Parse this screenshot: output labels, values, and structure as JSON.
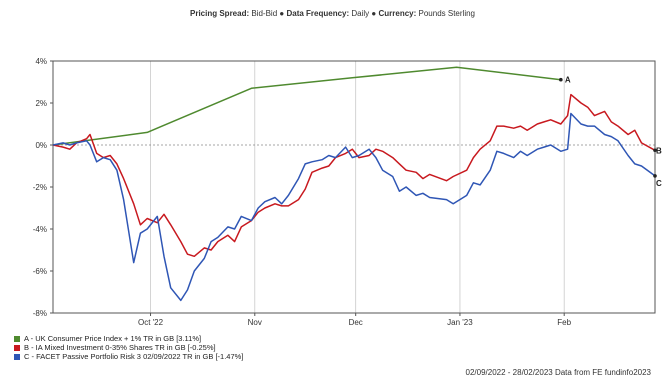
{
  "header": {
    "spread_key": "Pricing Spread:",
    "spread_value": "Bid-Bid",
    "freq_key": "Data Frequency:",
    "freq_value": "Daily",
    "currency_key": "Currency:",
    "currency_value": "Pounds Sterling",
    "separator": "●"
  },
  "footer": {
    "range_text": "02/09/2022 - 28/02/2023 Data from FE fundinfo2023"
  },
  "chart_data": {
    "type": "line",
    "title": "",
    "xlabel": "",
    "ylabel": "",
    "x_range": [
      "2022-09-02",
      "2023-02-28"
    ],
    "ylim": [
      -8,
      4
    ],
    "y_ticks": [
      4,
      2,
      0,
      -2,
      -4,
      -6,
      -8
    ],
    "y_tick_labels": [
      "4%",
      "2%",
      "0%",
      "-2%",
      "-4%",
      "-6%",
      "-8%"
    ],
    "x_ticks": [
      {
        "date": "2022-10-01",
        "label": "Oct '22"
      },
      {
        "date": "2022-11-01",
        "label": "Nov"
      },
      {
        "date": "2022-12-01",
        "label": "Dec"
      },
      {
        "date": "2023-01-01",
        "label": "Jan '23"
      },
      {
        "date": "2023-02-01",
        "label": "Feb"
      }
    ],
    "grid": "vertical at x ticks, zero line",
    "legend_position": "bottom-left",
    "series": [
      {
        "letter": "A",
        "name": "A - UK Consumer Price Index + 1% TR in GB [3.11%]",
        "color": "#4f8a2f",
        "points": [
          [
            "2022-09-02",
            0.0
          ],
          [
            "2022-09-30",
            0.6
          ],
          [
            "2022-10-31",
            2.7
          ],
          [
            "2022-11-30",
            3.2
          ],
          [
            "2022-12-31",
            3.7
          ],
          [
            "2023-01-31",
            3.11
          ]
        ]
      },
      {
        "letter": "B",
        "name": "B - IA Mixed Investment 0-35% Shares TR in GB [-0.25%]",
        "color": "#c8191f",
        "points": [
          [
            "2022-09-02",
            0.0
          ],
          [
            "2022-09-05",
            -0.1
          ],
          [
            "2022-09-07",
            -0.2
          ],
          [
            "2022-09-09",
            0.1
          ],
          [
            "2022-09-12",
            0.3
          ],
          [
            "2022-09-13",
            0.5
          ],
          [
            "2022-09-15",
            -0.4
          ],
          [
            "2022-09-17",
            -0.6
          ],
          [
            "2022-09-19",
            -0.5
          ],
          [
            "2022-09-21",
            -0.9
          ],
          [
            "2022-09-23",
            -1.6
          ],
          [
            "2022-09-26",
            -2.8
          ],
          [
            "2022-09-28",
            -3.8
          ],
          [
            "2022-09-30",
            -3.5
          ],
          [
            "2022-10-03",
            -3.7
          ],
          [
            "2022-10-05",
            -3.3
          ],
          [
            "2022-10-07",
            -3.8
          ],
          [
            "2022-10-10",
            -4.6
          ],
          [
            "2022-10-12",
            -5.2
          ],
          [
            "2022-10-14",
            -5.3
          ],
          [
            "2022-10-17",
            -4.9
          ],
          [
            "2022-10-19",
            -5.0
          ],
          [
            "2022-10-21",
            -4.6
          ],
          [
            "2022-10-24",
            -4.3
          ],
          [
            "2022-10-26",
            -4.6
          ],
          [
            "2022-10-28",
            -3.9
          ],
          [
            "2022-10-31",
            -3.6
          ],
          [
            "2022-11-02",
            -3.2
          ],
          [
            "2022-11-04",
            -3.0
          ],
          [
            "2022-11-07",
            -2.8
          ],
          [
            "2022-11-09",
            -2.9
          ],
          [
            "2022-11-11",
            -2.9
          ],
          [
            "2022-11-14",
            -2.6
          ],
          [
            "2022-11-16",
            -2.1
          ],
          [
            "2022-11-18",
            -1.3
          ],
          [
            "2022-11-21",
            -1.1
          ],
          [
            "2022-11-23",
            -1.0
          ],
          [
            "2022-11-25",
            -0.6
          ],
          [
            "2022-11-28",
            -0.4
          ],
          [
            "2022-11-30",
            -0.2
          ],
          [
            "2022-12-02",
            -0.6
          ],
          [
            "2022-12-05",
            -0.5
          ],
          [
            "2022-12-07",
            -0.2
          ],
          [
            "2022-12-09",
            -0.3
          ],
          [
            "2022-12-12",
            -0.6
          ],
          [
            "2022-12-14",
            -0.9
          ],
          [
            "2022-12-16",
            -1.2
          ],
          [
            "2022-12-19",
            -1.3
          ],
          [
            "2022-12-21",
            -1.6
          ],
          [
            "2022-12-23",
            -1.4
          ],
          [
            "2022-12-28",
            -1.7
          ],
          [
            "2022-12-30",
            -1.5
          ],
          [
            "2023-01-03",
            -1.2
          ],
          [
            "2023-01-05",
            -0.6
          ],
          [
            "2023-01-07",
            -0.2
          ],
          [
            "2023-01-10",
            0.2
          ],
          [
            "2023-01-12",
            0.9
          ],
          [
            "2023-01-14",
            0.9
          ],
          [
            "2023-01-17",
            0.8
          ],
          [
            "2023-01-19",
            0.9
          ],
          [
            "2023-01-21",
            0.7
          ],
          [
            "2023-01-24",
            1.0
          ],
          [
            "2023-01-26",
            1.1
          ],
          [
            "2023-01-28",
            1.2
          ],
          [
            "2023-01-31",
            1.0
          ],
          [
            "2023-02-02",
            1.4
          ],
          [
            "2023-02-03",
            2.4
          ],
          [
            "2023-02-06",
            2.0
          ],
          [
            "2023-02-08",
            1.8
          ],
          [
            "2023-02-10",
            1.4
          ],
          [
            "2023-02-13",
            1.6
          ],
          [
            "2023-02-15",
            1.1
          ],
          [
            "2023-02-17",
            0.9
          ],
          [
            "2023-02-20",
            0.5
          ],
          [
            "2023-02-22",
            0.7
          ],
          [
            "2023-02-24",
            0.1
          ],
          [
            "2023-02-28",
            -0.25
          ]
        ]
      },
      {
        "letter": "C",
        "name": "C - FACET Passive Portfolio Risk 3 02/09/2022 TR in GB [-1.47%]",
        "color": "#2f56b5",
        "points": [
          [
            "2022-09-02",
            0.0
          ],
          [
            "2022-09-05",
            0.1
          ],
          [
            "2022-09-07",
            0.0
          ],
          [
            "2022-09-09",
            0.1
          ],
          [
            "2022-09-12",
            0.2
          ],
          [
            "2022-09-13",
            0.0
          ],
          [
            "2022-09-15",
            -0.8
          ],
          [
            "2022-09-17",
            -0.6
          ],
          [
            "2022-09-19",
            -0.7
          ],
          [
            "2022-09-21",
            -1.2
          ],
          [
            "2022-09-23",
            -2.6
          ],
          [
            "2022-09-26",
            -5.6
          ],
          [
            "2022-09-28",
            -4.2
          ],
          [
            "2022-09-30",
            -4.0
          ],
          [
            "2022-10-03",
            -3.4
          ],
          [
            "2022-10-05",
            -5.3
          ],
          [
            "2022-10-07",
            -6.8
          ],
          [
            "2022-10-10",
            -7.4
          ],
          [
            "2022-10-12",
            -6.9
          ],
          [
            "2022-10-14",
            -6.0
          ],
          [
            "2022-10-17",
            -5.4
          ],
          [
            "2022-10-19",
            -4.6
          ],
          [
            "2022-10-21",
            -4.4
          ],
          [
            "2022-10-24",
            -3.9
          ],
          [
            "2022-10-26",
            -4.0
          ],
          [
            "2022-10-28",
            -3.4
          ],
          [
            "2022-10-31",
            -3.6
          ],
          [
            "2022-11-02",
            -3.0
          ],
          [
            "2022-11-04",
            -2.7
          ],
          [
            "2022-11-07",
            -2.5
          ],
          [
            "2022-11-09",
            -2.8
          ],
          [
            "2022-11-11",
            -2.4
          ],
          [
            "2022-11-14",
            -1.6
          ],
          [
            "2022-11-16",
            -0.9
          ],
          [
            "2022-11-18",
            -0.8
          ],
          [
            "2022-11-21",
            -0.7
          ],
          [
            "2022-11-23",
            -0.5
          ],
          [
            "2022-11-25",
            -0.6
          ],
          [
            "2022-11-28",
            -0.1
          ],
          [
            "2022-11-30",
            -0.6
          ],
          [
            "2022-12-02",
            -0.5
          ],
          [
            "2022-12-05",
            -0.2
          ],
          [
            "2022-12-07",
            -0.6
          ],
          [
            "2022-12-09",
            -1.2
          ],
          [
            "2022-12-12",
            -1.5
          ],
          [
            "2022-12-14",
            -2.2
          ],
          [
            "2022-12-16",
            -2.0
          ],
          [
            "2022-12-19",
            -2.4
          ],
          [
            "2022-12-21",
            -2.3
          ],
          [
            "2022-12-23",
            -2.5
          ],
          [
            "2022-12-28",
            -2.6
          ],
          [
            "2022-12-30",
            -2.8
          ],
          [
            "2023-01-03",
            -2.4
          ],
          [
            "2023-01-05",
            -1.8
          ],
          [
            "2023-01-07",
            -1.9
          ],
          [
            "2023-01-10",
            -1.2
          ],
          [
            "2023-01-12",
            -0.3
          ],
          [
            "2023-01-14",
            -0.4
          ],
          [
            "2023-01-17",
            -0.6
          ],
          [
            "2023-01-19",
            -0.3
          ],
          [
            "2023-01-21",
            -0.5
          ],
          [
            "2023-01-24",
            -0.2
          ],
          [
            "2023-01-26",
            -0.1
          ],
          [
            "2023-01-28",
            0.0
          ],
          [
            "2023-01-31",
            -0.3
          ],
          [
            "2023-02-02",
            -0.2
          ],
          [
            "2023-02-03",
            1.5
          ],
          [
            "2023-02-06",
            1.0
          ],
          [
            "2023-02-08",
            0.9
          ],
          [
            "2023-02-10",
            0.9
          ],
          [
            "2023-02-13",
            0.5
          ],
          [
            "2023-02-15",
            0.4
          ],
          [
            "2023-02-17",
            0.2
          ],
          [
            "2023-02-20",
            -0.5
          ],
          [
            "2023-02-22",
            -0.9
          ],
          [
            "2023-02-24",
            -1.0
          ],
          [
            "2023-02-28",
            -1.47
          ]
        ]
      }
    ]
  }
}
